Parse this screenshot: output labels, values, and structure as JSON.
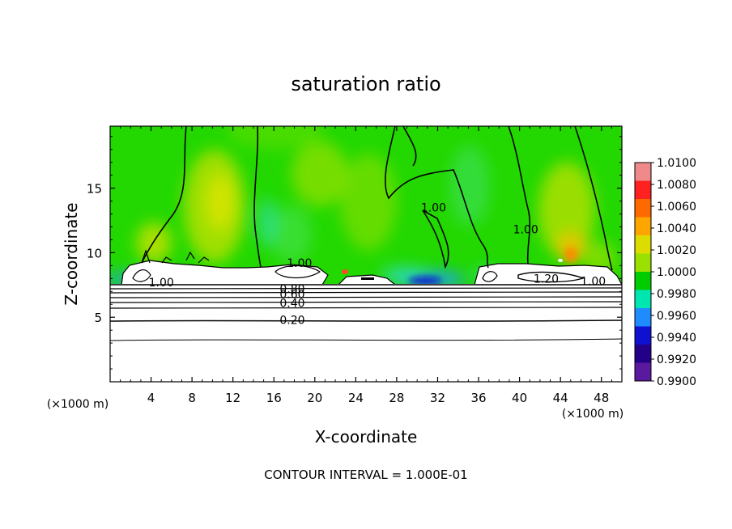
{
  "chart_data": {
    "type": "heatmap",
    "title": "saturation ratio",
    "xlabel": "X-coordinate",
    "ylabel": "Z-coordinate",
    "x_unit_left": "(×1000 m)",
    "x_unit_right": "(×1000 m)",
    "xlim": [
      0,
      50
    ],
    "ylim": [
      0,
      19.8
    ],
    "xticks": [
      4,
      8,
      12,
      16,
      20,
      24,
      28,
      32,
      36,
      40,
      44,
      48
    ],
    "yticks": [
      5,
      10,
      15
    ],
    "footer": "CONTOUR INTERVAL = 1.000E-01",
    "colorbar": {
      "ticks": [
        "1.0100",
        "1.0080",
        "1.0060",
        "1.0040",
        "1.0020",
        "1.0000",
        "0.9980",
        "0.9960",
        "0.9940",
        "0.9920",
        "0.9900"
      ],
      "colors": [
        "#f08a8a",
        "#ff2020",
        "#ff6a00",
        "#ffa500",
        "#dcdc00",
        "#9ae000",
        "#00cc00",
        "#00e6b0",
        "#1e8cff",
        "#1010d0",
        "#220088",
        "#5a1aa0"
      ]
    },
    "contour_labels": [
      {
        "text": "1.00",
        "x": 18.5,
        "z": 9.2
      },
      {
        "text": "1.00",
        "x": 5.0,
        "z": 7.7
      },
      {
        "text": "0.80",
        "x": 17.8,
        "z": 7.2
      },
      {
        "text": "0.60",
        "x": 17.8,
        "z": 6.8
      },
      {
        "text": "0.40",
        "x": 17.8,
        "z": 6.1
      },
      {
        "text": "0.20",
        "x": 17.8,
        "z": 4.8
      },
      {
        "text": "1.00",
        "x": 31.6,
        "z": 13.5
      },
      {
        "text": "1.00",
        "x": 40.6,
        "z": 11.8
      },
      {
        "text": "1.20",
        "x": 42.6,
        "z": 8.0
      },
      {
        "text": "1.00",
        "x": 47.2,
        "z": 7.8
      }
    ]
  }
}
